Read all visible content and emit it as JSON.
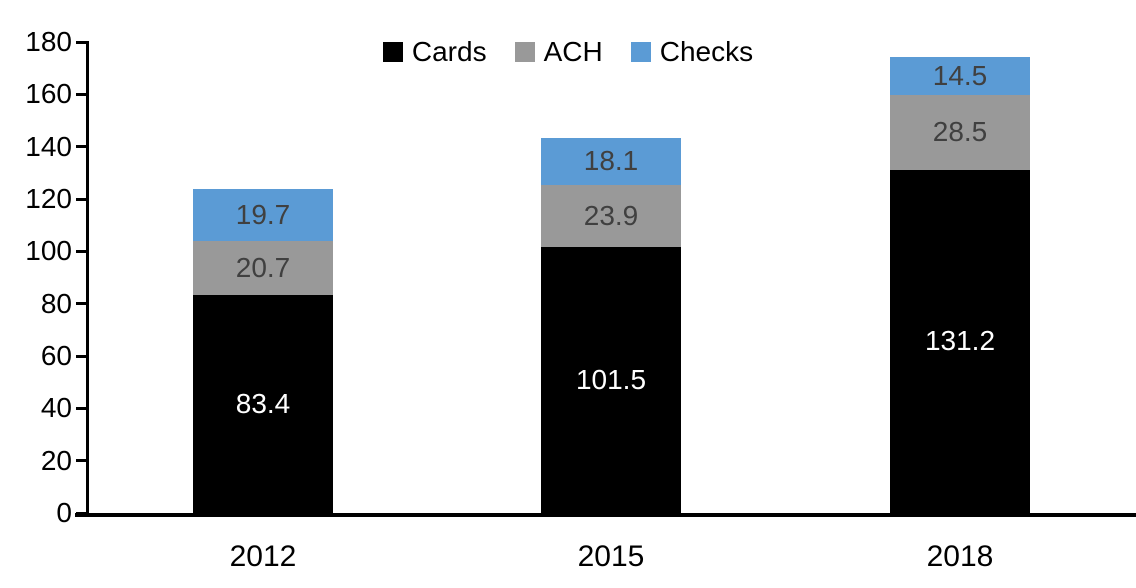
{
  "chart_data": {
    "type": "bar",
    "stacked": true,
    "title": "",
    "categories": [
      "2012",
      "2015",
      "2018"
    ],
    "series": [
      {
        "name": "Cards",
        "color": "#000000",
        "label_color": "#ffffff",
        "values": [
          83.4,
          101.5,
          131.2
        ]
      },
      {
        "name": "ACH",
        "color": "#999999",
        "label_color": "#404040",
        "values": [
          20.7,
          23.9,
          28.5
        ]
      },
      {
        "name": "Checks",
        "color": "#5b9bd5",
        "label_color": "#404040",
        "values": [
          19.7,
          18.1,
          14.5
        ]
      }
    ],
    "totals": [
      123.8,
      143.5,
      174.2
    ],
    "ylim": [
      0,
      180
    ],
    "ytick_step": 20,
    "yticks": [
      0,
      20,
      40,
      60,
      80,
      100,
      120,
      140,
      160,
      180
    ],
    "xlabel": "",
    "ylabel": "",
    "legend_position": "top-center",
    "grid": false,
    "axis_color": "#000000",
    "background_color": "#ffffff"
  }
}
